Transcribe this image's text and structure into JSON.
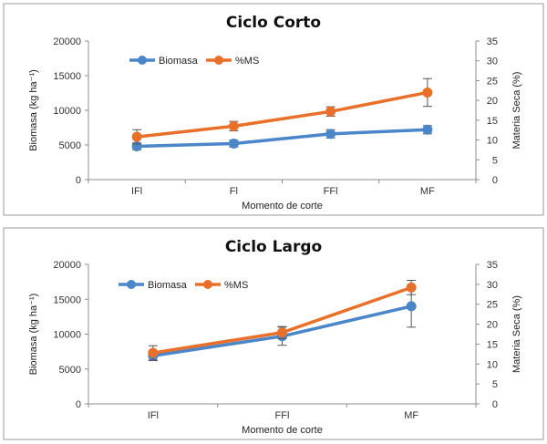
{
  "chart_data": [
    {
      "type": "line",
      "title": "Ciclo Corto",
      "xlabel": "Momento de corte",
      "ylabel": "Biomasa (kg ha⁻¹)",
      "y2label": "Materia Seca (%)",
      "categories": [
        "IFl",
        "Fl",
        "FFl",
        "MF"
      ],
      "ylim": [
        0,
        20000
      ],
      "yticks": [
        0,
        5000,
        10000,
        15000,
        20000
      ],
      "y2lim": [
        0,
        35
      ],
      "y2ticks": [
        0,
        5,
        10,
        15,
        20,
        25,
        30,
        35
      ],
      "grid": false,
      "legend": "top-left",
      "series": [
        {
          "name": "Biomasa",
          "axis": "left",
          "color": "#4a86c8",
          "values": [
            4800,
            5200,
            6600,
            7200
          ],
          "error": [
            500,
            500,
            600,
            600
          ]
        },
        {
          "name": "%MS",
          "axis": "right",
          "color": "#e8702a",
          "values": [
            10.8,
            13.5,
            17.2,
            22.0
          ],
          "error": [
            1.8,
            1.2,
            1.2,
            3.5
          ]
        }
      ]
    },
    {
      "type": "line",
      "title": "Ciclo Largo",
      "xlabel": "Momento de corte",
      "ylabel": "Biomasa (kg ha⁻¹)",
      "y2label": "Materia Seca (%)",
      "categories": [
        "IFl",
        "FFl",
        "MF"
      ],
      "ylim": [
        0,
        20000
      ],
      "yticks": [
        0,
        5000,
        10000,
        15000,
        20000
      ],
      "y2lim": [
        0,
        35
      ],
      "y2ticks": [
        0,
        5,
        10,
        15,
        20,
        25,
        30,
        35
      ],
      "grid": false,
      "legend": "top-left",
      "series": [
        {
          "name": "Biomasa",
          "axis": "left",
          "color": "#4a86c8",
          "values": [
            6900,
            9700,
            14000
          ],
          "error": [
            700,
            1300,
            3000
          ]
        },
        {
          "name": "%MS",
          "axis": "right",
          "color": "#e8702a",
          "values": [
            12.8,
            17.9,
            29.2
          ],
          "error": [
            1.8,
            1.5,
            1.8
          ]
        }
      ]
    }
  ]
}
